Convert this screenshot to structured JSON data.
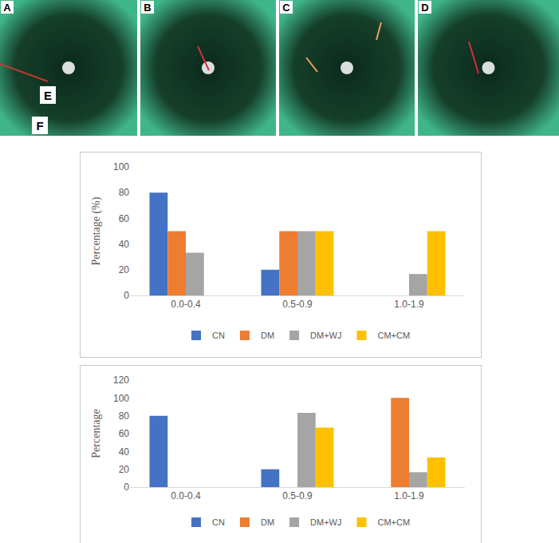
{
  "photo_panels": [
    {
      "label": "A",
      "inset_labels": [
        "E",
        "F"
      ]
    },
    {
      "label": "B"
    },
    {
      "label": "C"
    },
    {
      "label": "D"
    }
  ],
  "chart_data": [
    {
      "type": "bar",
      "y_label": "Percentage (%)",
      "categories": [
        "0.0-0.4",
        "0.5-0.9",
        "1.0-1.9"
      ],
      "series": [
        {
          "name": "CN",
          "color": "#4472c4",
          "values": [
            80,
            20,
            0
          ]
        },
        {
          "name": "DM",
          "color": "#ed7d31",
          "values": [
            50,
            50,
            0
          ]
        },
        {
          "name": "DM+WJ",
          "color": "#a5a5a5",
          "values": [
            33.3,
            50,
            16.7
          ]
        },
        {
          "name": "CM+CM",
          "color": "#ffc000",
          "values": [
            0,
            50,
            50
          ]
        }
      ],
      "ylim": [
        0,
        100
      ],
      "yticks": [
        0,
        20,
        40,
        60,
        80,
        100
      ],
      "grid": false,
      "legend": "bottom"
    },
    {
      "type": "bar",
      "y_label": "Percentage",
      "categories": [
        "0.0-0.4",
        "0.5-0.9",
        "1.0-1.9"
      ],
      "series": [
        {
          "name": "CN",
          "color": "#4472c4",
          "values": [
            80,
            20,
            0
          ]
        },
        {
          "name": "DM",
          "color": "#ed7d31",
          "values": [
            0,
            0,
            100
          ]
        },
        {
          "name": "DM+WJ",
          "color": "#a5a5a5",
          "values": [
            0,
            83.3,
            16.7
          ]
        },
        {
          "name": "CM+CM",
          "color": "#ffc000",
          "values": [
            0,
            66.7,
            33.3
          ]
        }
      ],
      "ylim": [
        0,
        120
      ],
      "yticks": [
        0,
        20,
        40,
        60,
        80,
        100,
        120
      ],
      "grid": false,
      "legend": "bottom"
    }
  ]
}
